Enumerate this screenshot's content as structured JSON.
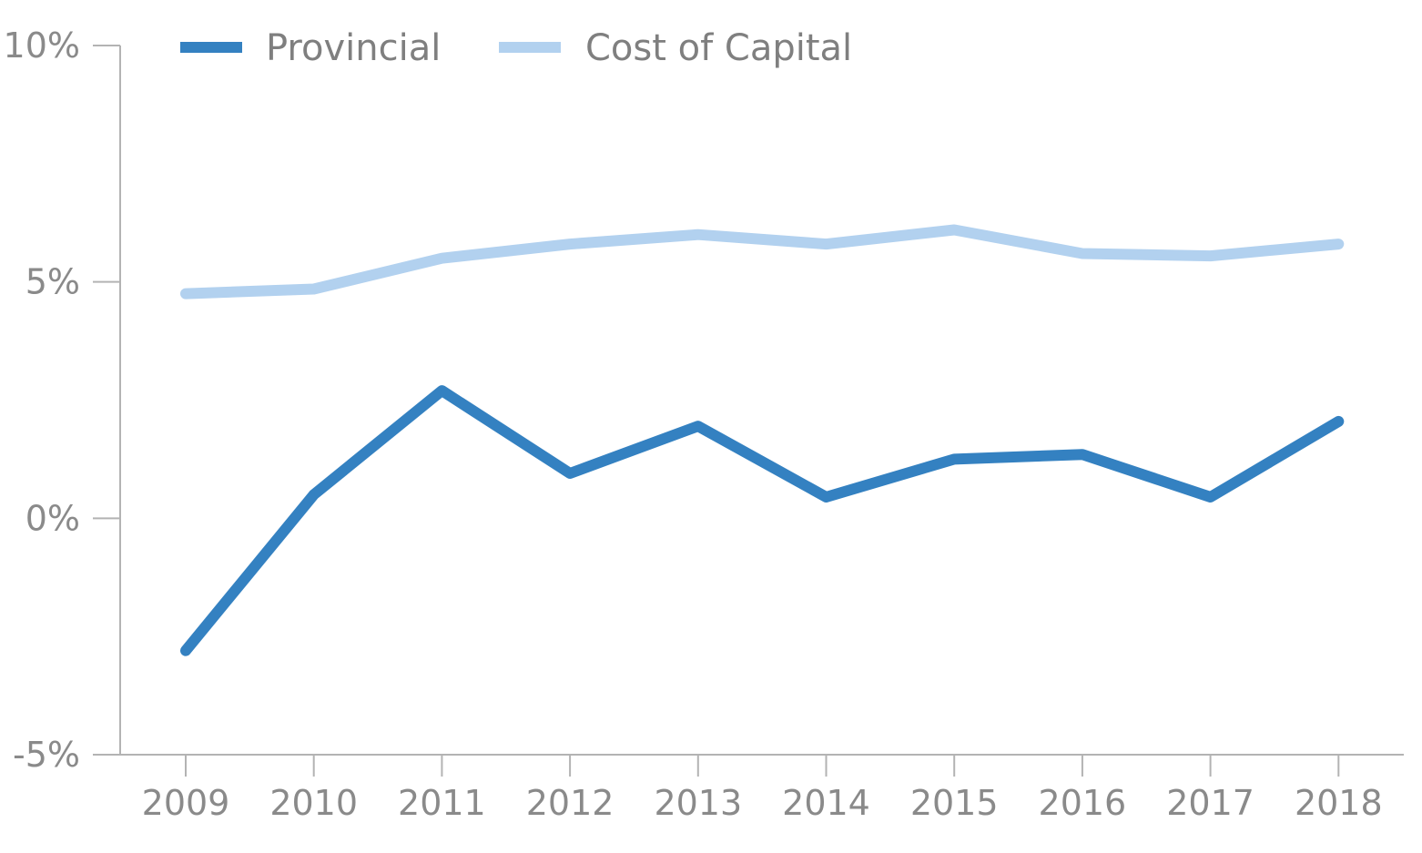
{
  "chart_data": {
    "type": "line",
    "title": "",
    "xlabel": "",
    "ylabel": "",
    "x": [
      "2009",
      "2010",
      "2011",
      "2012",
      "2013",
      "2014",
      "2015",
      "2016",
      "2017",
      "2018"
    ],
    "y_ticks": [
      "-5%",
      "0%",
      "5%",
      "10%"
    ],
    "y_tick_values": [
      -5,
      0,
      5,
      10
    ],
    "ylim": [
      -5,
      10
    ],
    "grid": false,
    "legend_position": "top-left",
    "series": [
      {
        "name": "Provincial",
        "color": "#3481c1",
        "values": [
          -2.8,
          0.5,
          2.7,
          0.95,
          1.95,
          0.45,
          1.25,
          1.35,
          0.45,
          2.05
        ]
      },
      {
        "name": "Cost of Capital",
        "color": "#b2d1ef",
        "values": [
          4.75,
          4.85,
          5.5,
          5.8,
          6.0,
          5.8,
          6.1,
          5.6,
          5.55,
          5.8
        ]
      }
    ]
  }
}
